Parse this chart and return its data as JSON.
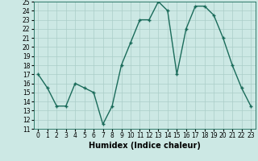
{
  "x": [
    0,
    1,
    2,
    3,
    4,
    5,
    6,
    7,
    8,
    9,
    10,
    11,
    12,
    13,
    14,
    15,
    16,
    17,
    18,
    19,
    20,
    21,
    22,
    23
  ],
  "y": [
    17,
    15.5,
    13.5,
    13.5,
    16,
    15.5,
    15,
    11.5,
    13.5,
    18,
    20.5,
    23,
    23,
    25,
    24,
    17,
    22,
    24.5,
    24.5,
    23.5,
    21,
    18,
    15.5,
    13.5
  ],
  "line_color": "#1a6b5a",
  "marker": "+",
  "marker_size": 3,
  "bg_color": "#cce8e4",
  "grid_color": "#aacdc8",
  "xlabel": "Humidex (Indice chaleur)",
  "ylabel": "",
  "ylim": [
    11,
    25
  ],
  "xlim": [
    -0.5,
    23.5
  ],
  "yticks": [
    11,
    12,
    13,
    14,
    15,
    16,
    17,
    18,
    19,
    20,
    21,
    22,
    23,
    24,
    25
  ],
  "xticks": [
    0,
    1,
    2,
    3,
    4,
    5,
    6,
    7,
    8,
    9,
    10,
    11,
    12,
    13,
    14,
    15,
    16,
    17,
    18,
    19,
    20,
    21,
    22,
    23
  ],
  "xtick_labels": [
    "0",
    "1",
    "2",
    "3",
    "4",
    "5",
    "6",
    "7",
    "8",
    "9",
    "10",
    "11",
    "12",
    "13",
    "14",
    "15",
    "16",
    "17",
    "18",
    "19",
    "20",
    "21",
    "22",
    "23"
  ],
  "tick_fontsize": 5.5,
  "xlabel_fontsize": 7,
  "line_width": 1.0,
  "marker_edge_width": 1.0
}
